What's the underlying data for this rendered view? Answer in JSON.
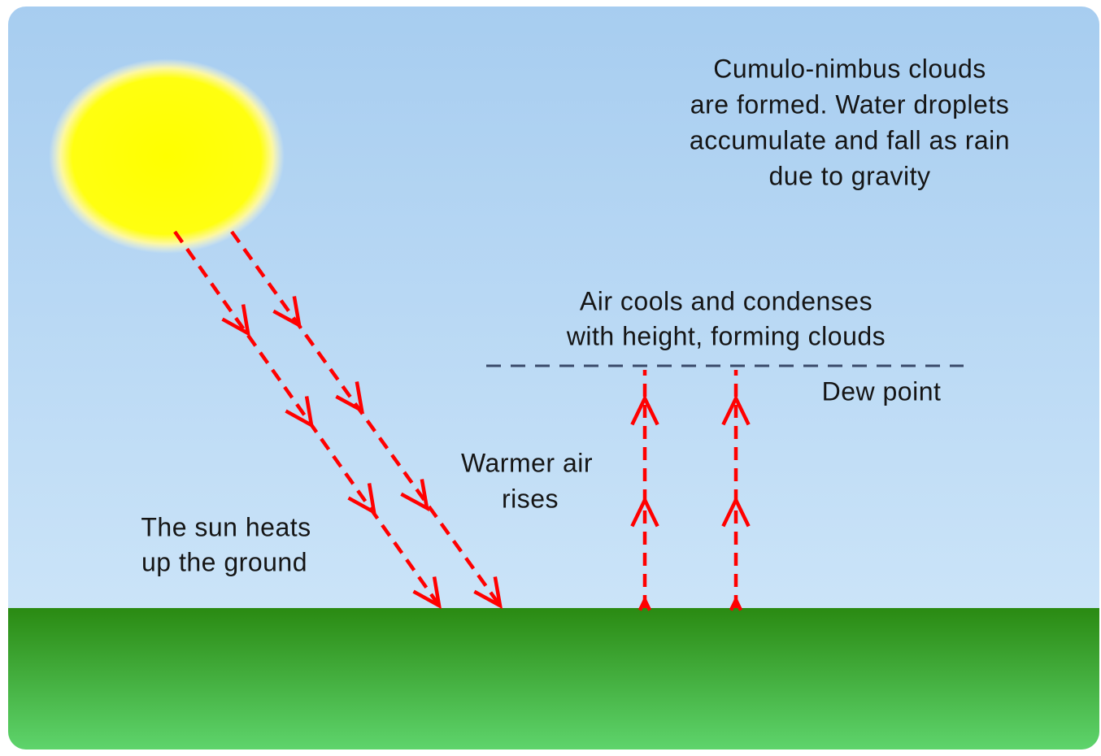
{
  "labels": {
    "rain": {
      "lines": [
        "Cumulo-nimbus clouds",
        "are formed. Water droplets",
        "accumulate and fall as rain",
        "due to gravity"
      ]
    },
    "condense": {
      "lines": [
        "Air cools and condenses",
        "with height, forming clouds"
      ]
    },
    "dew_point": {
      "lines": [
        "Dew point"
      ]
    },
    "rises": {
      "lines": [
        "Warmer air",
        "rises"
      ]
    },
    "heats": {
      "lines": [
        "The sun heats",
        "up the ground"
      ]
    }
  }
}
